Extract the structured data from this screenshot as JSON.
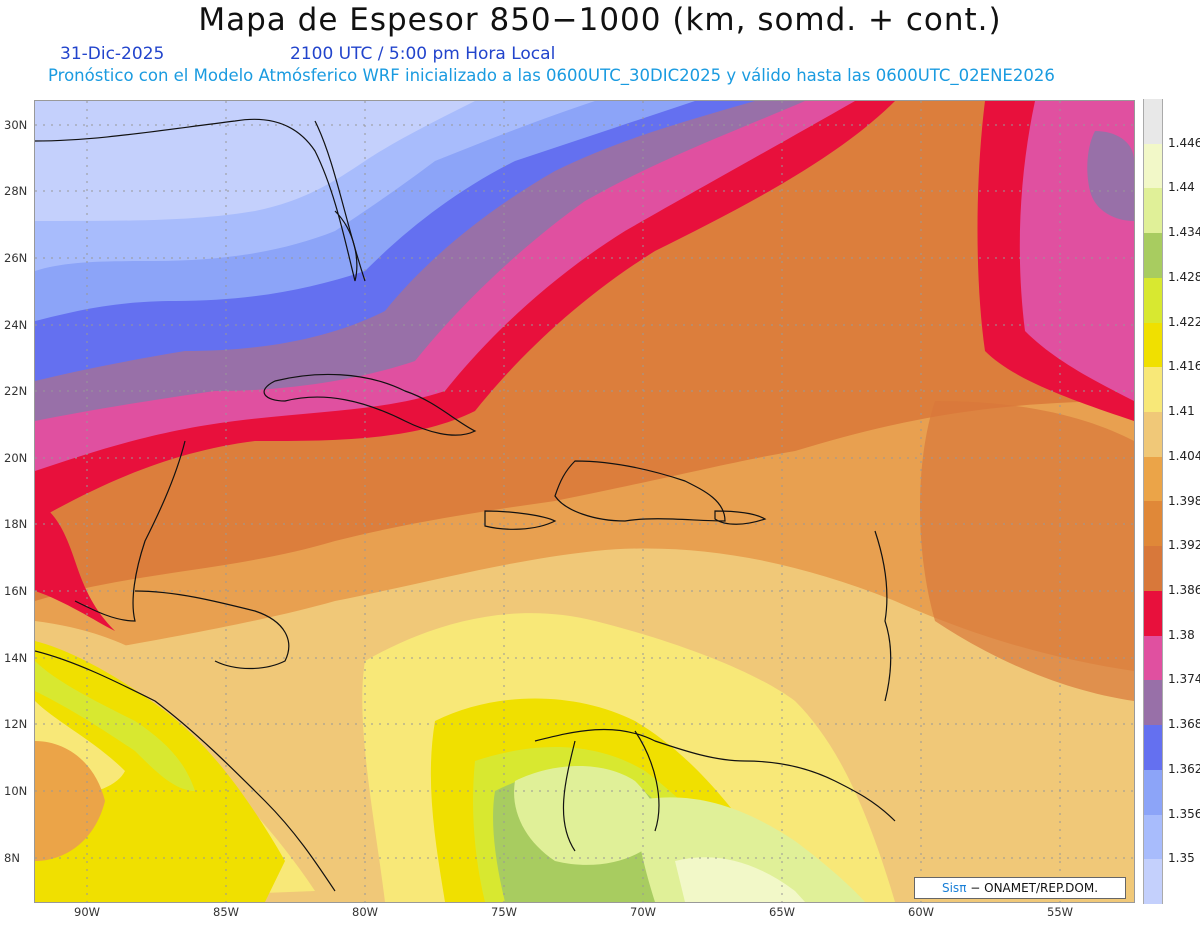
{
  "header": {
    "title": "Mapa de Espesor 850−1000 (km, somd. + cont.)",
    "date": "31-Dic-2025",
    "time": "2100 UTC / 5:00 pm Hora Local",
    "description": "Pronóstico con el Modelo Atmósferico WRF inicializado a las 0600UTC_30DIC2025 y válido hasta las  0600UTC_02ENE2026"
  },
  "axes": {
    "lat_labels": [
      "30N",
      "28N",
      "26N",
      "24N",
      "22N",
      "20N",
      "18N",
      "16N",
      "14N",
      "12N",
      "10N",
      "8N"
    ],
    "lon_labels": [
      "90W",
      "85W",
      "80W",
      "75W",
      "70W",
      "65W",
      "60W",
      "55W"
    ]
  },
  "colorbar": {
    "labels": [
      "1.446",
      "1.44",
      "1.434",
      "1.428",
      "1.422",
      "1.416",
      "1.41",
      "1.404",
      "1.398",
      "1.392",
      "1.386",
      "1.38",
      "1.374",
      "1.368",
      "1.362",
      "1.356",
      "1.35"
    ],
    "colors": [
      "#e8e8e8",
      "#f2f8c8",
      "#e0f098",
      "#a8cc60",
      "#d8e830",
      "#f0e000",
      "#f8e878",
      "#f0c878",
      "#eba448",
      "#e08838",
      "#d8783a",
      "#e8103c",
      "#e050a0",
      "#9870a8",
      "#6470f0",
      "#8ca4f8",
      "#a8bcfc",
      "#c4d0fc"
    ]
  },
  "credit": {
    "sis": "Sisπ",
    "text": "− ONAMET/REP.DOM."
  }
}
